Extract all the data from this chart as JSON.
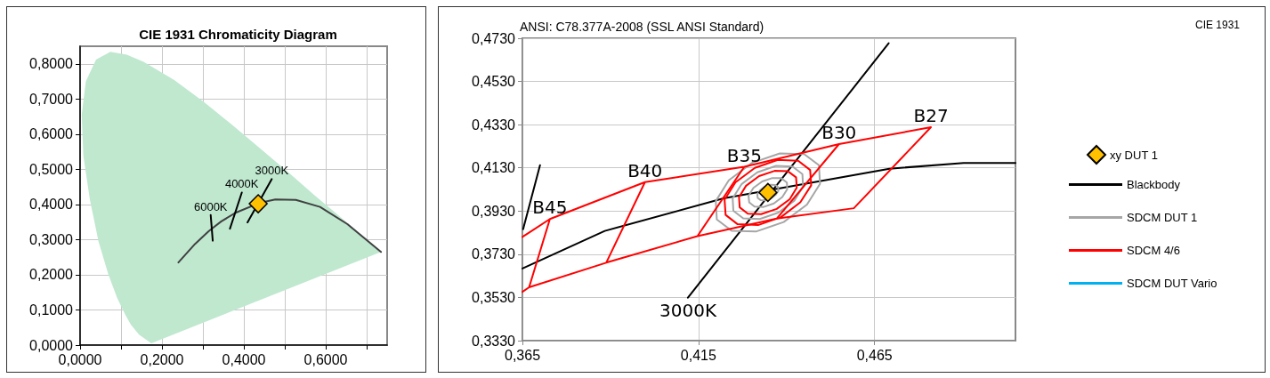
{
  "chart_data": [
    {
      "type": "line",
      "title": "CIE 1931 Chromaticity Diagram",
      "xlim": [
        0,
        0.75
      ],
      "ylim": [
        0,
        0.85
      ],
      "xticks": [
        {
          "value": 0,
          "label": "0,0000"
        },
        {
          "value": 0.1,
          "label": null
        },
        {
          "value": 0.2,
          "label": "0,2000"
        },
        {
          "value": 0.3,
          "label": null
        },
        {
          "value": 0.4,
          "label": "0,4000"
        },
        {
          "value": 0.5,
          "label": null
        },
        {
          "value": 0.6,
          "label": "0,6000"
        },
        {
          "value": 0.7,
          "label": null
        }
      ],
      "yticks": [
        {
          "value": 0,
          "label": "0,0000"
        },
        {
          "value": 0.1,
          "label": "0,1000"
        },
        {
          "value": 0.2,
          "label": "0,2000"
        },
        {
          "value": 0.3,
          "label": "0,3000"
        },
        {
          "value": 0.4,
          "label": "0,4000"
        },
        {
          "value": 0.5,
          "label": "0,5000"
        },
        {
          "value": 0.6,
          "label": "0,6000"
        },
        {
          "value": 0.7,
          "label": "0,7000"
        },
        {
          "value": 0.8,
          "label": "0,8000"
        }
      ],
      "grid": true,
      "marker": "none",
      "annotations": [
        {
          "text": "6000K",
          "x": 0.319,
          "y": 0.37
        },
        {
          "text": "4000K",
          "x": 0.395,
          "y": 0.434
        },
        {
          "text": "3000K",
          "x": 0.468,
          "y": 0.472
        }
      ],
      "series": [
        {
          "type": "area",
          "color": "#bfe8cf",
          "x": [
            0.174,
            0.144,
            0.124,
            0.11,
            0.091,
            0.069,
            0.045,
            0.024,
            0.008,
            0.004,
            0.014,
            0.039,
            0.074,
            0.114,
            0.155,
            0.23,
            0.302,
            0.373,
            0.444,
            0.513,
            0.575,
            0.627,
            0.692,
            0.735
          ],
          "values": [
            0.005,
            0.03,
            0.058,
            0.087,
            0.133,
            0.201,
            0.295,
            0.413,
            0.538,
            0.655,
            0.75,
            0.812,
            0.834,
            0.826,
            0.806,
            0.754,
            0.692,
            0.625,
            0.555,
            0.487,
            0.424,
            0.373,
            0.308,
            0.265
          ]
        },
        {
          "color": "#404040",
          "x": [
            0.24,
            0.281,
            0.314,
            0.345,
            0.381,
            0.437,
            0.477,
            0.527,
            0.586,
            0.653,
            0.735
          ],
          "values": [
            0.235,
            0.288,
            0.324,
            0.352,
            0.377,
            0.404,
            0.414,
            0.413,
            0.393,
            0.344,
            0.265
          ]
        },
        {
          "color": "#000000",
          "x": [
            0.319,
            0.324,
            null,
            0.395,
            0.366,
            null,
            0.468,
            0.409
          ],
          "values": [
            0.37,
            0.297,
            null,
            0.434,
            0.331,
            null,
            0.472,
            0.349
          ]
        },
        {
          "type": "scatter",
          "marker": "diamond",
          "color": "#ffc000",
          "x": [
            0.435
          ],
          "values": [
            0.402
          ]
        }
      ]
    },
    {
      "type": "line",
      "title": "ANSI: C78.377A-2008 (SSL ANSI Standard)",
      "xlim": [
        0.365,
        0.505
      ],
      "ylim": [
        0.333,
        0.473
      ],
      "xticks": [
        {
          "value": 0.365,
          "label": "0,365"
        },
        {
          "value": 0.415,
          "label": "0,415"
        },
        {
          "value": 0.465,
          "label": "0,465"
        }
      ],
      "yticks": [
        {
          "value": 0.333,
          "label": "0,3330"
        },
        {
          "value": 0.353,
          "label": "0,3530"
        },
        {
          "value": 0.373,
          "label": "0,3730"
        },
        {
          "value": 0.393,
          "label": "0,3930"
        },
        {
          "value": 0.413,
          "label": "0,4130"
        },
        {
          "value": 0.433,
          "label": "0,4330"
        },
        {
          "value": 0.453,
          "label": "0,4530"
        },
        {
          "value": 0.473,
          "label": "0,4730"
        }
      ],
      "grid": true,
      "marker": "none",
      "legend": "right",
      "annotations": [
        "CIE 1931",
        {
          "text": "B45",
          "x": 0.3728,
          "y": 0.3893
        },
        {
          "text": "B40",
          "x": 0.3998,
          "y": 0.4064
        },
        {
          "text": "B35",
          "x": 0.428,
          "y": 0.4135
        },
        {
          "text": "B30",
          "x": 0.4549,
          "y": 0.424
        },
        {
          "text": "B27",
          "x": 0.481,
          "y": 0.4318
        },
        {
          "text": "3000K",
          "x": 0.412,
          "y": 0.3529
        }
      ],
      "series": [
        {
          "name": "Blackbody",
          "color": "#000000",
          "x": [
            0.365,
            0.3884,
            0.4221,
            0.4692,
            0.4903,
            0.505
          ],
          "values": [
            0.3664,
            0.3838,
            0.3989,
            0.4126,
            0.4153,
            0.4153
          ]
        },
        {
          "color": "#000000",
          "x": [
            0.412,
            0.469,
            null,
            0.3652,
            0.37
          ],
          "values": [
            0.3529,
            0.4707,
            null,
            0.3846,
            0.4142
          ]
        },
        {
          "name": "SDCM DUT 1",
          "color": "#a6a6a6",
          "x": [
            0.4376,
            0.4368,
            0.4354,
            0.4338,
            0.4325,
            0.4317,
            0.4318,
            null,
            0.4318,
            0.4326,
            0.434,
            0.4356,
            0.4369,
            0.4377,
            0.4376
          ],
          "values": [
            0.4041,
            0.4051,
            0.4052,
            0.4043,
            0.4027,
            0.4008,
            0.3991,
            null,
            0.3991,
            0.3981,
            0.398,
            0.3989,
            0.4005,
            0.4024,
            0.4041
          ]
        },
        {
          "color": "#a6a6a6",
          "x": [
            0.4401,
            0.4385,
            0.436,
            0.4331,
            0.4306,
            0.4292,
            0.4294,
            null,
            0.4294,
            0.4309,
            0.4335,
            0.4364,
            0.4388,
            0.4402,
            0.4401
          ],
          "values": [
            0.4062,
            0.4082,
            0.4083,
            0.4067,
            0.4037,
            0.4001,
            0.397,
            null,
            0.397,
            0.3951,
            0.3949,
            0.3965,
            0.3995,
            0.4031,
            0.4062
          ]
        },
        {
          "color": "#a6a6a6",
          "x": [
            0.4445,
            0.4417,
            0.437,
            0.4317,
            0.4272,
            0.4247,
            0.4249,
            null,
            0.4249,
            0.4277,
            0.4324,
            0.4377,
            0.4422,
            0.4447,
            0.4445
          ],
          "values": [
            0.4101,
            0.4136,
            0.4139,
            0.4109,
            0.4054,
            0.3989,
            0.3931,
            null,
            0.3931,
            0.3896,
            0.3893,
            0.3923,
            0.3978,
            0.4043,
            0.4101
          ]
        },
        {
          "color": "#a6a6a6",
          "x": [
            0.4492,
            0.445,
            0.4381,
            0.4302,
            0.4236,
            0.4199,
            0.4202,
            null,
            0.4202,
            0.4244,
            0.4313,
            0.4392,
            0.4458,
            0.4495,
            0.4492
          ],
          "values": [
            0.4142,
            0.4194,
            0.4197,
            0.4153,
            0.4072,
            0.3976,
            0.3891,
            null,
            0.3891,
            0.3839,
            0.3835,
            0.3879,
            0.396,
            0.4056,
            0.4142
          ]
        },
        {
          "name": "SDCM 4/6",
          "color": "#ff0000",
          "x": [
            0.365,
            0.3728,
            0.3998,
            0.428,
            0.4549,
            0.481,
            0.4591,
            0.4372,
            0.4147,
            0.3888,
            0.3669,
            0.365,
            null,
            0.3669,
            0.3728,
            null,
            0.3888,
            0.3998,
            null,
            0.4147,
            0.428,
            null,
            0.4372,
            0.4549
          ],
          "values": [
            0.381,
            0.3893,
            0.4064,
            0.4135,
            0.424,
            0.4318,
            0.3943,
            0.3895,
            0.3814,
            0.3691,
            0.3577,
            0.3556,
            null,
            0.3577,
            0.3893,
            null,
            0.3691,
            0.4064,
            null,
            0.3814,
            0.4135,
            null,
            0.3895,
            0.424
          ]
        },
        {
          "color": "#ff0000",
          "x": [
            0.4427,
            0.4404,
            0.4366,
            0.4322,
            0.4285,
            0.4265,
            0.4267,
            null,
            0.4267,
            0.429,
            0.4328,
            0.4372,
            0.4409,
            0.4429,
            0.4427
          ],
          "values": [
            0.4086,
            0.4114,
            0.4116,
            0.4092,
            0.4047,
            0.3994,
            0.3947,
            null,
            0.3947,
            0.3918,
            0.3916,
            0.394,
            0.3985,
            0.4038,
            0.4086
          ]
        },
        {
          "color": "#ff0000",
          "x": [
            0.4467,
            0.4433,
            0.4375,
            0.431,
            0.4255,
            0.4224,
            0.4227,
            null,
            0.4227,
            0.4261,
            0.4319,
            0.4384,
            0.4439,
            0.447,
            0.4467
          ],
          "values": [
            0.412,
            0.4163,
            0.4167,
            0.413,
            0.4063,
            0.3983,
            0.3912,
            null,
            0.3912,
            0.3869,
            0.3865,
            0.3902,
            0.397,
            0.4049,
            0.412
          ]
        },
        {
          "name": "SDCM DUT Vario",
          "color": "#00b0f0"
        },
        {
          "name": "xy DUT 1",
          "type": "scatter",
          "marker": "diamond",
          "color": "#ffc000",
          "x": [
            0.4347
          ],
          "values": [
            0.4016
          ]
        }
      ]
    }
  ]
}
